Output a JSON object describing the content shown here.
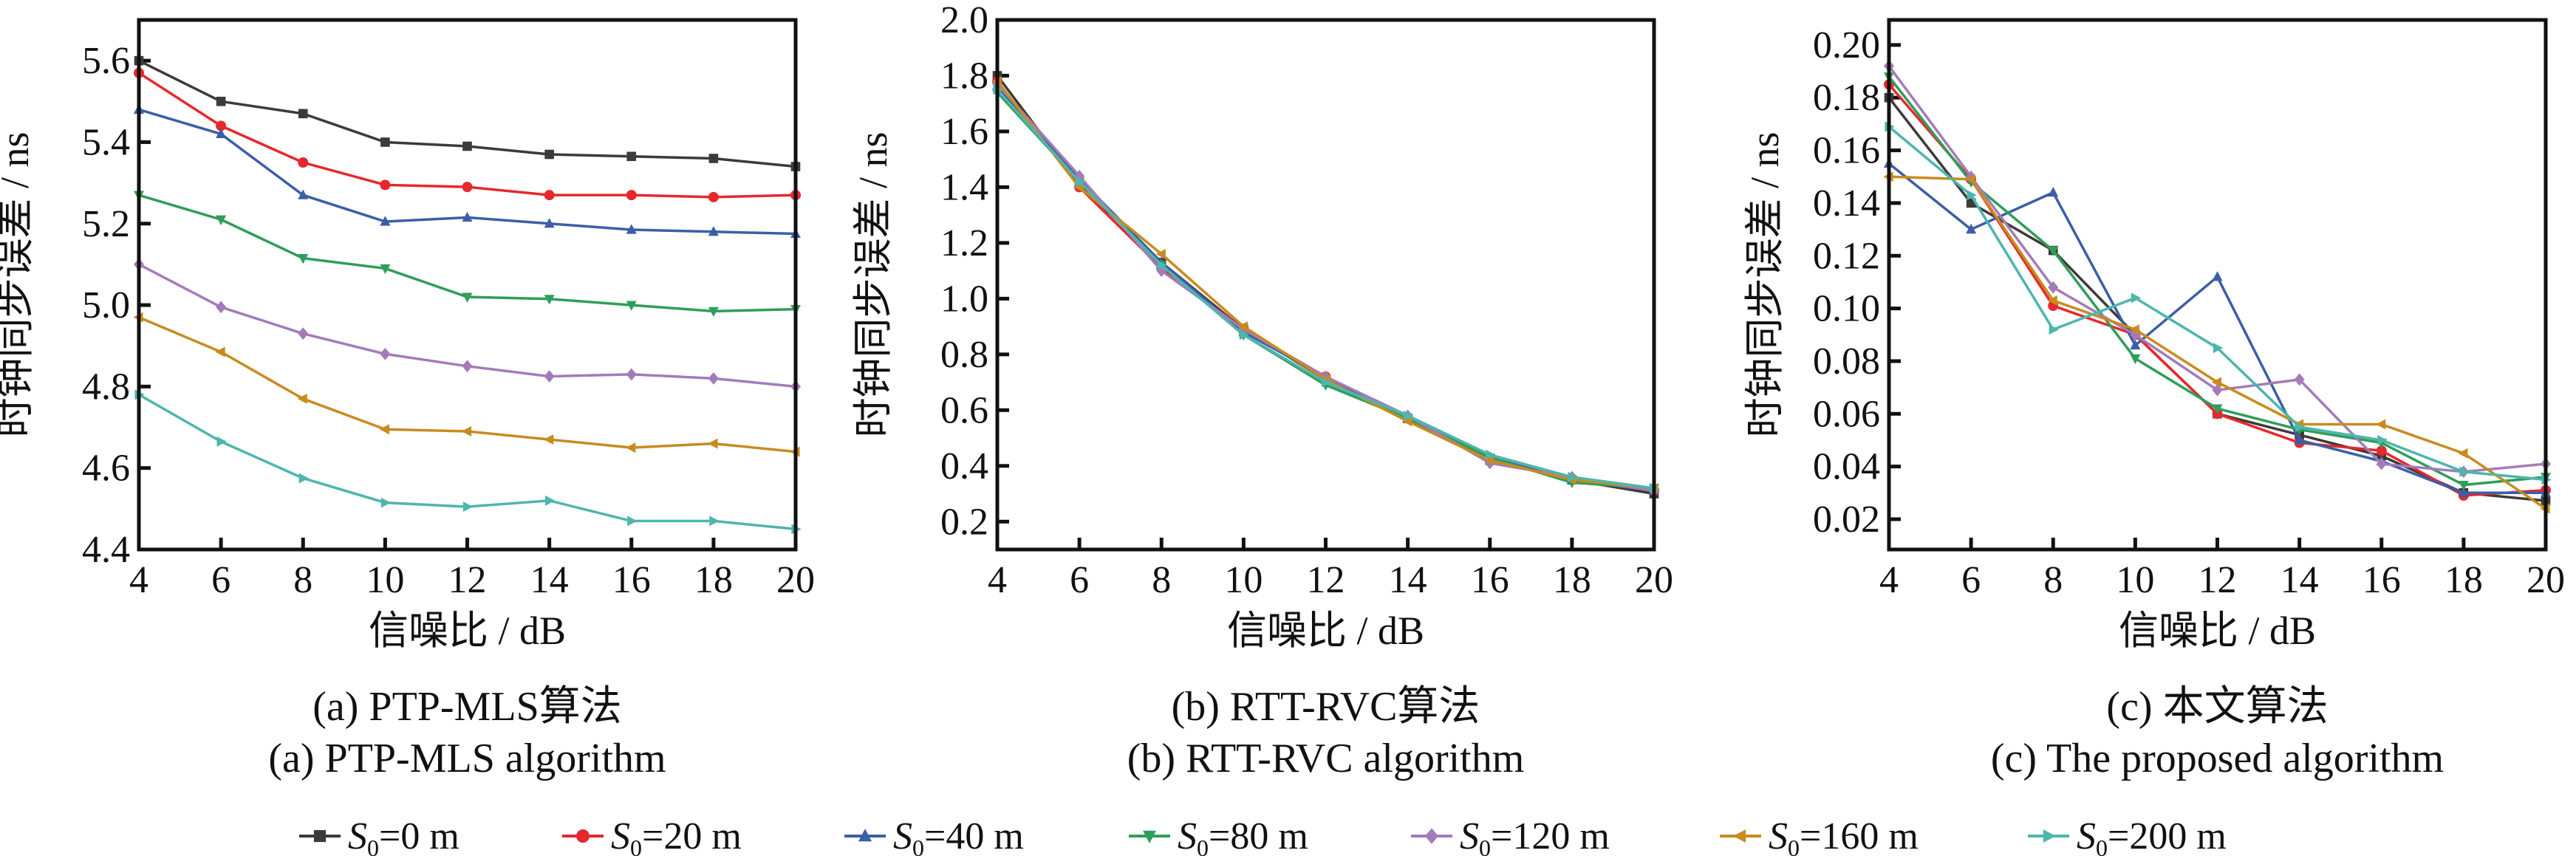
{
  "chart_data": [
    {
      "type": "line",
      "caption_cn": "(a) PTP-MLS算法",
      "caption_en": "(a) PTP-MLS algorithm",
      "xlabel": "信噪比 / dB",
      "ylabel": "时钟同步误差 / ns",
      "x": [
        4,
        6,
        8,
        10,
        12,
        14,
        16,
        18,
        20
      ],
      "xlim": [
        4,
        20
      ],
      "ylim": [
        4.4,
        5.7
      ],
      "yticks": [
        "4.4",
        "4.6",
        "4.8",
        "5.0",
        "5.2",
        "5.4",
        "5.6"
      ],
      "xticks": [
        "4",
        "6",
        "8",
        "10",
        "12",
        "14",
        "16",
        "18",
        "20"
      ],
      "series": [
        {
          "values": [
            5.6,
            5.5,
            5.47,
            5.4,
            5.39,
            5.37,
            5.365,
            5.36,
            5.34
          ]
        },
        {
          "values": [
            5.57,
            5.44,
            5.35,
            5.295,
            5.29,
            5.27,
            5.27,
            5.265,
            5.27
          ]
        },
        {
          "values": [
            5.48,
            5.42,
            5.27,
            5.205,
            5.215,
            5.2,
            5.185,
            5.18,
            5.175
          ]
        },
        {
          "values": [
            5.27,
            5.21,
            5.115,
            5.09,
            5.02,
            5.015,
            5.0,
            4.985,
            4.99
          ]
        },
        {
          "values": [
            5.1,
            4.995,
            4.93,
            4.88,
            4.85,
            4.825,
            4.83,
            4.82,
            4.8
          ]
        },
        {
          "values": [
            4.97,
            4.885,
            4.77,
            4.695,
            4.69,
            4.67,
            4.65,
            4.66,
            4.64
          ]
        },
        {
          "values": [
            4.78,
            4.665,
            4.575,
            4.515,
            4.505,
            4.52,
            4.47,
            4.47,
            4.45
          ]
        }
      ]
    },
    {
      "type": "line",
      "caption_cn": "(b) RTT-RVC算法",
      "caption_en": "(b) RTT-RVC algorithm",
      "xlabel": "信噪比 / dB",
      "ylabel": "时钟同步误差 / ns",
      "x": [
        4,
        6,
        8,
        10,
        12,
        14,
        16,
        18,
        20
      ],
      "xlim": [
        4,
        20
      ],
      "ylim": [
        0.1,
        2.0
      ],
      "yticks": [
        "0.2",
        "0.4",
        "0.6",
        "0.8",
        "1.0",
        "1.2",
        "1.4",
        "1.6",
        "1.8",
        "2.0"
      ],
      "xticks": [
        "4",
        "6",
        "8",
        "10",
        "12",
        "14",
        "16",
        "18",
        "20"
      ],
      "series": [
        {
          "values": [
            1.8,
            1.41,
            1.13,
            0.89,
            0.71,
            0.57,
            0.42,
            0.35,
            0.3
          ]
        },
        {
          "values": [
            1.78,
            1.4,
            1.11,
            0.89,
            0.72,
            0.57,
            0.42,
            0.35,
            0.31
          ]
        },
        {
          "values": [
            1.76,
            1.43,
            1.13,
            0.88,
            0.72,
            0.57,
            0.43,
            0.35,
            0.31
          ]
        },
        {
          "values": [
            1.74,
            1.42,
            1.12,
            0.87,
            0.69,
            0.57,
            0.43,
            0.34,
            0.32
          ]
        },
        {
          "values": [
            1.77,
            1.44,
            1.1,
            0.89,
            0.72,
            0.58,
            0.41,
            0.36,
            0.31
          ]
        },
        {
          "values": [
            1.78,
            1.4,
            1.16,
            0.9,
            0.71,
            0.56,
            0.42,
            0.35,
            0.32
          ]
        },
        {
          "values": [
            1.75,
            1.42,
            1.12,
            0.87,
            0.7,
            0.58,
            0.44,
            0.36,
            0.32
          ]
        }
      ]
    },
    {
      "type": "line",
      "caption_cn": "(c) 本文算法",
      "caption_en": "(c) The proposed algorithm",
      "xlabel": "信噪比 / dB",
      "ylabel": "时钟同步误差 / ns",
      "x": [
        4,
        6,
        8,
        10,
        12,
        14,
        16,
        18,
        20
      ],
      "xlim": [
        4,
        20
      ],
      "ylim": [
        0.0085,
        0.2095
      ],
      "yticks": [
        "0.02",
        "0.04",
        "0.06",
        "0.08",
        "0.10",
        "0.12",
        "0.14",
        "0.16",
        "0.18",
        "0.20"
      ],
      "xticks": [
        "4",
        "6",
        "8",
        "10",
        "12",
        "14",
        "16",
        "18",
        "20"
      ],
      "series": [
        {
          "values": [
            0.18,
            0.14,
            0.122,
            0.09,
            0.06,
            0.052,
            0.044,
            0.03,
            0.027
          ]
        },
        {
          "values": [
            0.185,
            0.149,
            0.101,
            0.09,
            0.06,
            0.049,
            0.046,
            0.029,
            0.031
          ]
        },
        {
          "values": [
            0.155,
            0.13,
            0.144,
            0.086,
            0.112,
            0.05,
            0.042,
            0.03,
            0.03
          ]
        },
        {
          "values": [
            0.188,
            0.148,
            0.122,
            0.081,
            0.062,
            0.054,
            0.049,
            0.033,
            0.036
          ]
        },
        {
          "values": [
            0.192,
            0.15,
            0.108,
            0.09,
            0.069,
            0.073,
            0.041,
            0.038,
            0.041
          ]
        },
        {
          "values": [
            0.15,
            0.149,
            0.103,
            0.092,
            0.072,
            0.056,
            0.056,
            0.045,
            0.024
          ]
        },
        {
          "values": [
            0.169,
            0.143,
            0.092,
            0.104,
            0.085,
            0.055,
            0.05,
            0.038,
            0.035
          ]
        }
      ]
    }
  ],
  "legend": {
    "placement": "bottom",
    "entries": [
      {
        "sym": "S",
        "sub": "0",
        "rest": "=0 m",
        "color": "#3d3a38",
        "marker": "square"
      },
      {
        "sym": "S",
        "sub": "0",
        "rest": "=20 m",
        "color": "#e6282c",
        "marker": "circle"
      },
      {
        "sym": "S",
        "sub": "0",
        "rest": "=40 m",
        "color": "#3b5ea8",
        "marker": "triangle-up"
      },
      {
        "sym": "S",
        "sub": "0",
        "rest": "=80 m",
        "color": "#2f9e5a",
        "marker": "triangle-down"
      },
      {
        "sym": "S",
        "sub": "0",
        "rest": "=120 m",
        "color": "#a47bb9",
        "marker": "diamond"
      },
      {
        "sym": "S",
        "sub": "0",
        "rest": "=160 m",
        "color": "#c98b1f",
        "marker": "triangle-left"
      },
      {
        "sym": "S",
        "sub": "0",
        "rest": "=200 m",
        "color": "#4db6ad",
        "marker": "triangle-right"
      }
    ]
  }
}
